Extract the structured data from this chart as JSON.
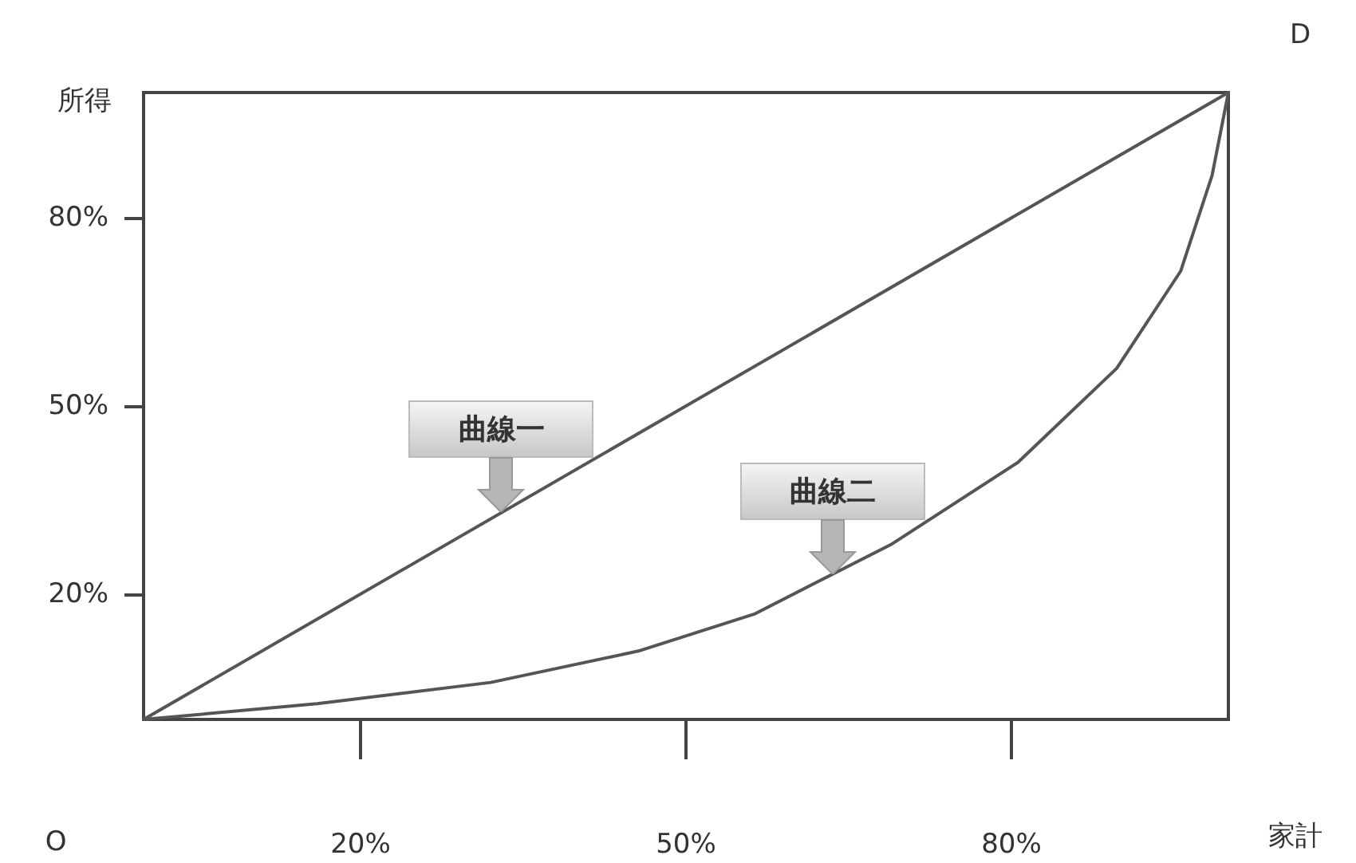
{
  "chart_data": {
    "type": "line",
    "xlabel": "家計",
    "ylabel": "所得",
    "xlim": [
      0,
      100
    ],
    "ylim": [
      0,
      100
    ],
    "xticks": [
      {
        "value": 20,
        "label": "20%"
      },
      {
        "value": 50,
        "label": "50%"
      },
      {
        "value": 80,
        "label": "80%"
      }
    ],
    "yticks": [
      {
        "value": 20,
        "label": "20%"
      },
      {
        "value": 50,
        "label": "50%"
      },
      {
        "value": 80,
        "label": "80%"
      }
    ],
    "series": [
      {
        "name": "曲線一",
        "color": "#555555",
        "x": [
          0,
          100
        ],
        "values": [
          0,
          100
        ]
      },
      {
        "name": "曲線二",
        "color": "#555555",
        "x": [
          0,
          16,
          32,
          45.6,
          56.3,
          69,
          80.6,
          89.7,
          95.6,
          98.5,
          100
        ],
        "values": [
          0,
          2.5,
          5.9,
          10.9,
          16.8,
          28,
          41,
          56,
          71.5,
          86.8,
          100
        ]
      }
    ],
    "annotations": [
      "O",
      "D"
    ],
    "marker": "none",
    "line_style": "solid",
    "grid": false,
    "legend": false
  }
}
